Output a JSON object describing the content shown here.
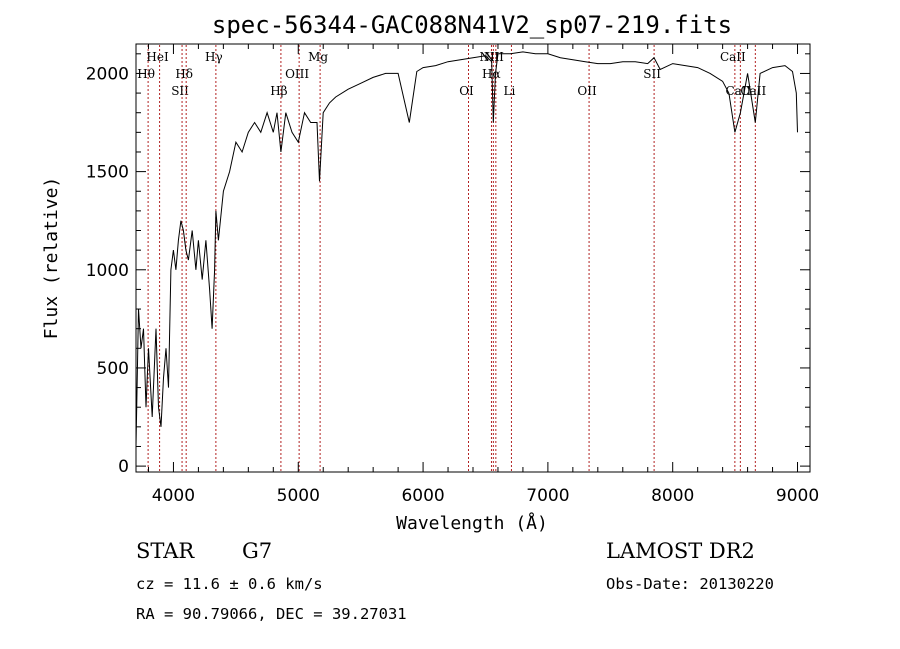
{
  "chart_data": {
    "type": "line",
    "title": "spec-56344-GAC088N41V2_sp07-219.fits",
    "xlabel": "Wavelength (Å)",
    "ylabel": "Flux (relative)",
    "xlim": [
      3700,
      9100
    ],
    "ylim": [
      -30,
      2150
    ],
    "x_ticks": [
      4000,
      5000,
      6000,
      7000,
      8000,
      9000
    ],
    "x_tick_labels": [
      "4000",
      "5000",
      "6000",
      "7000",
      "8000",
      "9000"
    ],
    "y_ticks": [
      0,
      500,
      1000,
      1500,
      2000
    ],
    "y_tick_labels": [
      "0",
      "500",
      "1000",
      "1500",
      "2000"
    ],
    "grid": false,
    "series": [
      {
        "x": [
          3700,
          3720,
          3740,
          3760,
          3780,
          3800,
          3830,
          3860,
          3880,
          3900,
          3920,
          3940,
          3960,
          3980,
          4000,
          4020,
          4040,
          4060,
          4080,
          4100,
          4120,
          4150,
          4180,
          4200,
          4230,
          4260,
          4290,
          4310,
          4330,
          4340,
          4360,
          4400,
          4450,
          4500,
          4550,
          4600,
          4650,
          4700,
          4750,
          4800,
          4830,
          4861,
          4900,
          4950,
          5000,
          5050,
          5100,
          5150,
          5170,
          5200,
          5250,
          5300,
          5400,
          5500,
          5600,
          5700,
          5800,
          5890,
          5950,
          6000,
          6100,
          6200,
          6300,
          6400,
          6500,
          6550,
          6563,
          6580,
          6600,
          6700,
          6800,
          6900,
          7000,
          7100,
          7200,
          7300,
          7400,
          7500,
          7600,
          7700,
          7800,
          7850,
          7900,
          8000,
          8100,
          8200,
          8300,
          8400,
          8450,
          8498,
          8542,
          8600,
          8662,
          8700,
          8800,
          8900,
          8960,
          8990,
          9000
        ],
        "y": [
          100,
          800,
          600,
          700,
          300,
          600,
          250,
          700,
          300,
          200,
          450,
          600,
          400,
          1000,
          1100,
          1000,
          1150,
          1250,
          1200,
          1100,
          1050,
          1200,
          1000,
          1150,
          950,
          1150,
          900,
          700,
          1000,
          1300,
          1150,
          1400,
          1500,
          1650,
          1600,
          1700,
          1750,
          1700,
          1800,
          1700,
          1800,
          1600,
          1800,
          1700,
          1650,
          1800,
          1750,
          1750,
          1450,
          1800,
          1850,
          1880,
          1920,
          1950,
          1980,
          2000,
          2000,
          1750,
          2010,
          2030,
          2040,
          2060,
          2070,
          2080,
          2090,
          2060,
          1750,
          2000,
          2100,
          2100,
          2110,
          2100,
          2100,
          2080,
          2070,
          2060,
          2050,
          2050,
          2060,
          2060,
          2050,
          2080,
          2020,
          2050,
          2040,
          2030,
          2000,
          1960,
          1900,
          1700,
          1800,
          2000,
          1750,
          2000,
          2030,
          2040,
          2010,
          1900,
          1700
        ]
      }
    ],
    "spectral_lines": [
      {
        "label": "Hθ",
        "x": 3797,
        "row": 2
      },
      {
        "label": "HeI",
        "x": 3889,
        "row": 1
      },
      {
        "label": "SII",
        "x": 4069,
        "row": 3
      },
      {
        "label": "Hδ",
        "x": 4102,
        "row": 2
      },
      {
        "label": "Hγ",
        "x": 4340,
        "row": 1
      },
      {
        "label": "Hβ",
        "x": 4861,
        "row": 3
      },
      {
        "label": "OIII",
        "x": 5007,
        "row": 2
      },
      {
        "label": "Mg",
        "x": 5175,
        "row": 1
      },
      {
        "label": "OI",
        "x": 6364,
        "row": 3
      },
      {
        "label": "NII",
        "x": 6548,
        "row": 1
      },
      {
        "label": "Hα",
        "x": 6563,
        "row": 2
      },
      {
        "label": "NII",
        "x": 6583,
        "row": 1
      },
      {
        "label": "Li",
        "x": 6708,
        "row": 3
      },
      {
        "label": "OII",
        "x": 7330,
        "row": 3
      },
      {
        "label": "SII",
        "x": 7851,
        "row": 2
      },
      {
        "label": "CaII",
        "x": 8498,
        "row": 1
      },
      {
        "label": "CaII",
        "x": 8542,
        "row": 3
      },
      {
        "label": "CaII",
        "x": 8662,
        "row": 3
      }
    ]
  },
  "info": {
    "object_class": "STAR",
    "subclass": "G7",
    "survey": "LAMOST DR2",
    "cz": "cz = 11.6 ± 0.6 km/s",
    "obs_date": "Obs-Date: 20130220",
    "radec": "RA =  90.79066, DEC =  39.27031"
  },
  "colors": {
    "line_marker": "#b22222",
    "spectrum": "#000000"
  }
}
